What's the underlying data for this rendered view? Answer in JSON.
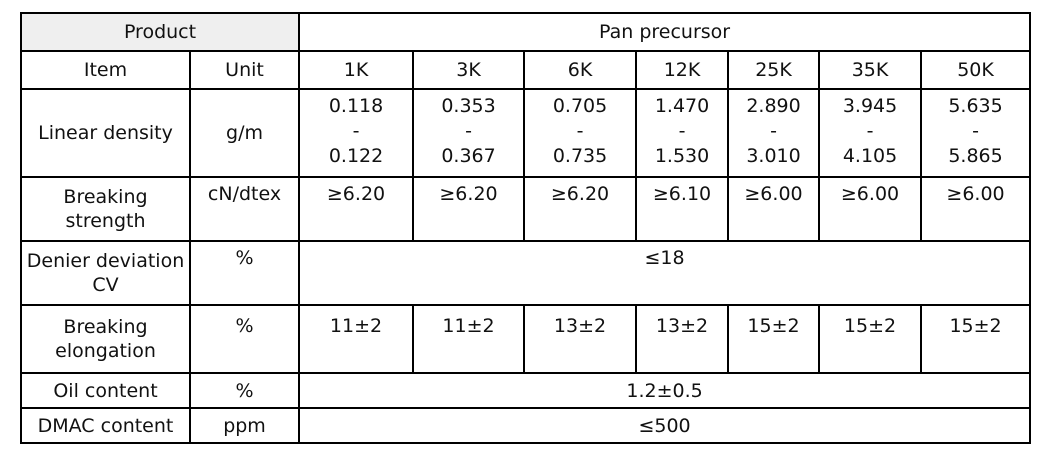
{
  "header": {
    "product": "Product",
    "group": "Pan precursor"
  },
  "columns": {
    "item": "Item",
    "unit": "Unit",
    "sizes": [
      "1K",
      "3K",
      "6K",
      "12K",
      "25K",
      "35K",
      "50K"
    ]
  },
  "rows": {
    "linear_density": {
      "label": "Linear density",
      "unit": "g/m",
      "values": [
        {
          "min": "0.118",
          "sep": "-",
          "max": "0.122"
        },
        {
          "min": "0.353",
          "sep": "-",
          "max": "0.367"
        },
        {
          "min": "0.705",
          "sep": "-",
          "max": "0.735"
        },
        {
          "min": "1.470",
          "sep": "-",
          "max": "1.530"
        },
        {
          "min": "2.890",
          "sep": "-",
          "max": "3.010"
        },
        {
          "min": "3.945",
          "sep": "-",
          "max": "4.105"
        },
        {
          "min": "5.635",
          "sep": "-",
          "max": "5.865"
        }
      ]
    },
    "breaking_strength": {
      "label_line1": "Breaking",
      "label_line2": "strength",
      "unit": "cN/dtex",
      "values": [
        "≥6.20",
        "≥6.20",
        "≥6.20",
        "≥6.10",
        "≥6.00",
        "≥6.00",
        "≥6.00"
      ]
    },
    "denier_deviation": {
      "label_line1": "Denier deviation",
      "label_line2": "CV",
      "unit": "%",
      "value": "≤18"
    },
    "breaking_elongation": {
      "label_line1": "Breaking",
      "label_line2": "elongation",
      "unit": "%",
      "values": [
        "11±2",
        "11±2",
        "13±2",
        "13±2",
        "15±2",
        "15±2",
        "15±2"
      ]
    },
    "oil_content": {
      "label": "Oil content",
      "unit": "%",
      "value": "1.2±0.5"
    },
    "dmac_content": {
      "label": "DMAC content",
      "unit": "ppm",
      "value": "≤500"
    }
  }
}
